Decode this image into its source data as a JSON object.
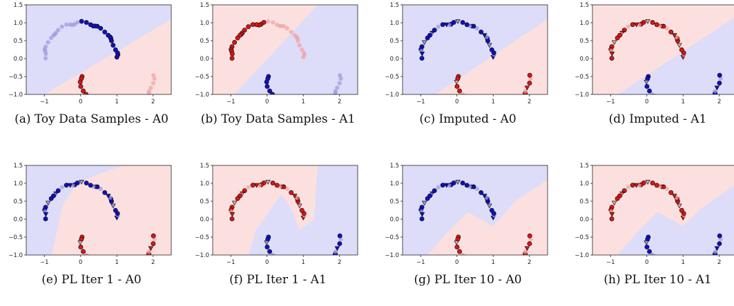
{
  "colors": {
    "background_a": "#dddcf9",
    "background_b": "#fbe0df",
    "class_blue": "#0f0fc8",
    "class_red": "#e01414",
    "faded_blue": "#9e9ee2",
    "faded_red": "#f0a6a6"
  },
  "chart_data": [
    {
      "type": "scatter",
      "caption": "(a) Toy Data Samples - A0",
      "xlim": [
        -1.5,
        2.5
      ],
      "ylim": [
        -1.0,
        1.5
      ],
      "xticks": [
        "-1",
        "0",
        "1",
        "2"
      ],
      "yticks": [
        "-1.0",
        "-0.5",
        "0.0",
        "0.5",
        "1.0",
        "1.5"
      ],
      "background_regions": "upper-left blue, lower-right red",
      "upper_moon": "blue (labeled on right arc, faded on left)",
      "lower_moon": "red (labeled on left arc, faded on right)",
      "marker": "circle"
    },
    {
      "type": "scatter",
      "caption": "(b) Toy Data Samples - A1",
      "xlim": [
        -1.5,
        2.5
      ],
      "ylim": [
        -1.0,
        1.5
      ],
      "xticks": [
        "-1",
        "0",
        "1",
        "2"
      ],
      "yticks": [
        "-1.0",
        "-0.5",
        "0.0",
        "0.5",
        "1.0",
        "1.5"
      ],
      "background_regions": "upper-left red, lower-right blue",
      "upper_moon": "red (labeled on left arc, faded on right)",
      "lower_moon": "blue (labeled on left arc, faded on right)",
      "marker": "circle"
    },
    {
      "type": "scatter",
      "caption": "(c) Imputed - A0",
      "xlim": [
        -1.5,
        2.5
      ],
      "ylim": [
        -1.0,
        1.5
      ],
      "xticks": [
        "-1",
        "0",
        "1",
        "2"
      ],
      "yticks": [
        "-1.0",
        "-0.5",
        "0.0",
        "0.5",
        "1.0",
        "1.5"
      ],
      "background_regions": "upper-left blue, lower-right red",
      "upper_moon": "blue circles + triangles",
      "lower_moon": "red circles + triangles",
      "marker": "circle/triangle"
    },
    {
      "type": "scatter",
      "caption": "(d) Imputed - A1",
      "xlim": [
        -1.5,
        2.5
      ],
      "ylim": [
        -1.0,
        1.5
      ],
      "xticks": [
        "-1",
        "0",
        "1",
        "2"
      ],
      "yticks": [
        "-1.0",
        "-0.5",
        "0.0",
        "0.5",
        "1.0",
        "1.5"
      ],
      "background_regions": "upper-left red, lower-right blue",
      "upper_moon": "red circles + triangles",
      "lower_moon": "blue circles + triangles",
      "marker": "circle/triangle"
    },
    {
      "type": "scatter",
      "caption": "(e) PL Iter 1 - A0",
      "xlim": [
        -1.5,
        2.5
      ],
      "ylim": [
        -1.0,
        1.5
      ],
      "xticks": [
        "-1",
        "0",
        "1",
        "2"
      ],
      "yticks": [
        "-1.0",
        "-0.5",
        "0.0",
        "0.5",
        "1.0",
        "1.5"
      ],
      "background_regions": "blue left/top, red right/bottom, wavy boundary",
      "upper_moon": "blue circles + triangles",
      "lower_moon": "red circles + triangles",
      "marker": "circle/triangle"
    },
    {
      "type": "scatter",
      "caption": "(f) PL Iter 1 - A1",
      "xlim": [
        -1.5,
        2.5
      ],
      "ylim": [
        -1.0,
        1.5
      ],
      "xticks": [
        "-1",
        "0",
        "1",
        "2"
      ],
      "yticks": [
        "-1.0",
        "-0.5",
        "0.0",
        "0.5",
        "1.0",
        "1.5"
      ],
      "background_regions": "red left/top, blue right/bottom, wavy boundary",
      "upper_moon": "red circles + triangles",
      "lower_moon": "blue circles + triangles",
      "marker": "circle/triangle"
    },
    {
      "type": "scatter",
      "caption": "(g) PL Iter 10 - A0",
      "xlim": [
        -1.5,
        2.5
      ],
      "ylim": [
        -1.0,
        1.5
      ],
      "xticks": [
        "-1",
        "0",
        "1",
        "2"
      ],
      "yticks": [
        "-1.0",
        "-0.5",
        "0.0",
        "0.5",
        "1.0",
        "1.5"
      ],
      "background_regions": "blue upper, red lower, boundary between moons",
      "upper_moon": "blue circles + triangles",
      "lower_moon": "red circles + triangles",
      "marker": "circle/triangle"
    },
    {
      "type": "scatter",
      "caption": "(h) PL Iter 10 - A1",
      "xlim": [
        -1.5,
        2.5
      ],
      "ylim": [
        -1.0,
        1.5
      ],
      "xticks": [
        "-1",
        "0",
        "1",
        "2"
      ],
      "yticks": [
        "-1.0",
        "-0.5",
        "0.0",
        "0.5",
        "1.0",
        "1.5"
      ],
      "background_regions": "red upper, blue lower, boundary between moons",
      "upper_moon": "red circles + triangles",
      "lower_moon": "blue circles + triangles",
      "marker": "circle/triangle"
    }
  ]
}
